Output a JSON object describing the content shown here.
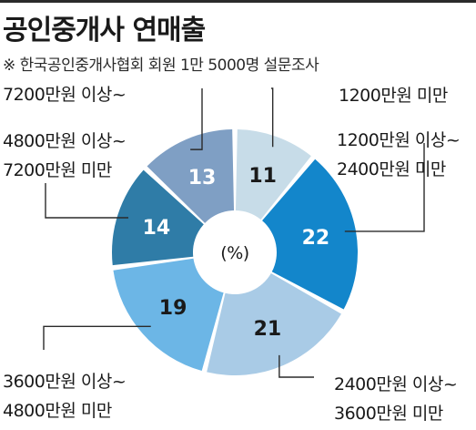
{
  "title": "공인중개사 연매출",
  "subtitle": "※ 한국공인중개사협회 회원 1만 5000명 설문조사",
  "center_label": "(%)",
  "chart_data": {
    "type": "pie",
    "title": "공인중개사 연매출",
    "subtitle": "※ 한국공인중개사협회 회원 1만 5000명 설문조사",
    "unit": "(%)",
    "donut": true,
    "slices": [
      {
        "label_lines": [
          "1200만원 미만"
        ],
        "value": 11,
        "color": "#c7dce8",
        "text_color": "#1a1a1a"
      },
      {
        "label_lines": [
          "1200만원 이상~",
          "2400만원 미만"
        ],
        "value": 22,
        "color": "#1386cb",
        "text_color": "#ffffff"
      },
      {
        "label_lines": [
          "2400만원 이상~",
          "3600만원 미만"
        ],
        "value": 21,
        "color": "#a9cbe6",
        "text_color": "#1a1a1a"
      },
      {
        "label_lines": [
          "3600만원 이상~",
          "4800만원 미만"
        ],
        "value": 19,
        "color": "#6cb6e6",
        "text_color": "#1a1a1a"
      },
      {
        "label_lines": [
          "4800만원 이상~",
          "7200만원 미만"
        ],
        "value": 14,
        "color": "#2f7ca7",
        "text_color": "#ffffff"
      },
      {
        "label_lines": [
          "7200만원 이상~"
        ],
        "value": 13,
        "color": "#7f9fc4",
        "text_color": "#ffffff"
      }
    ]
  }
}
